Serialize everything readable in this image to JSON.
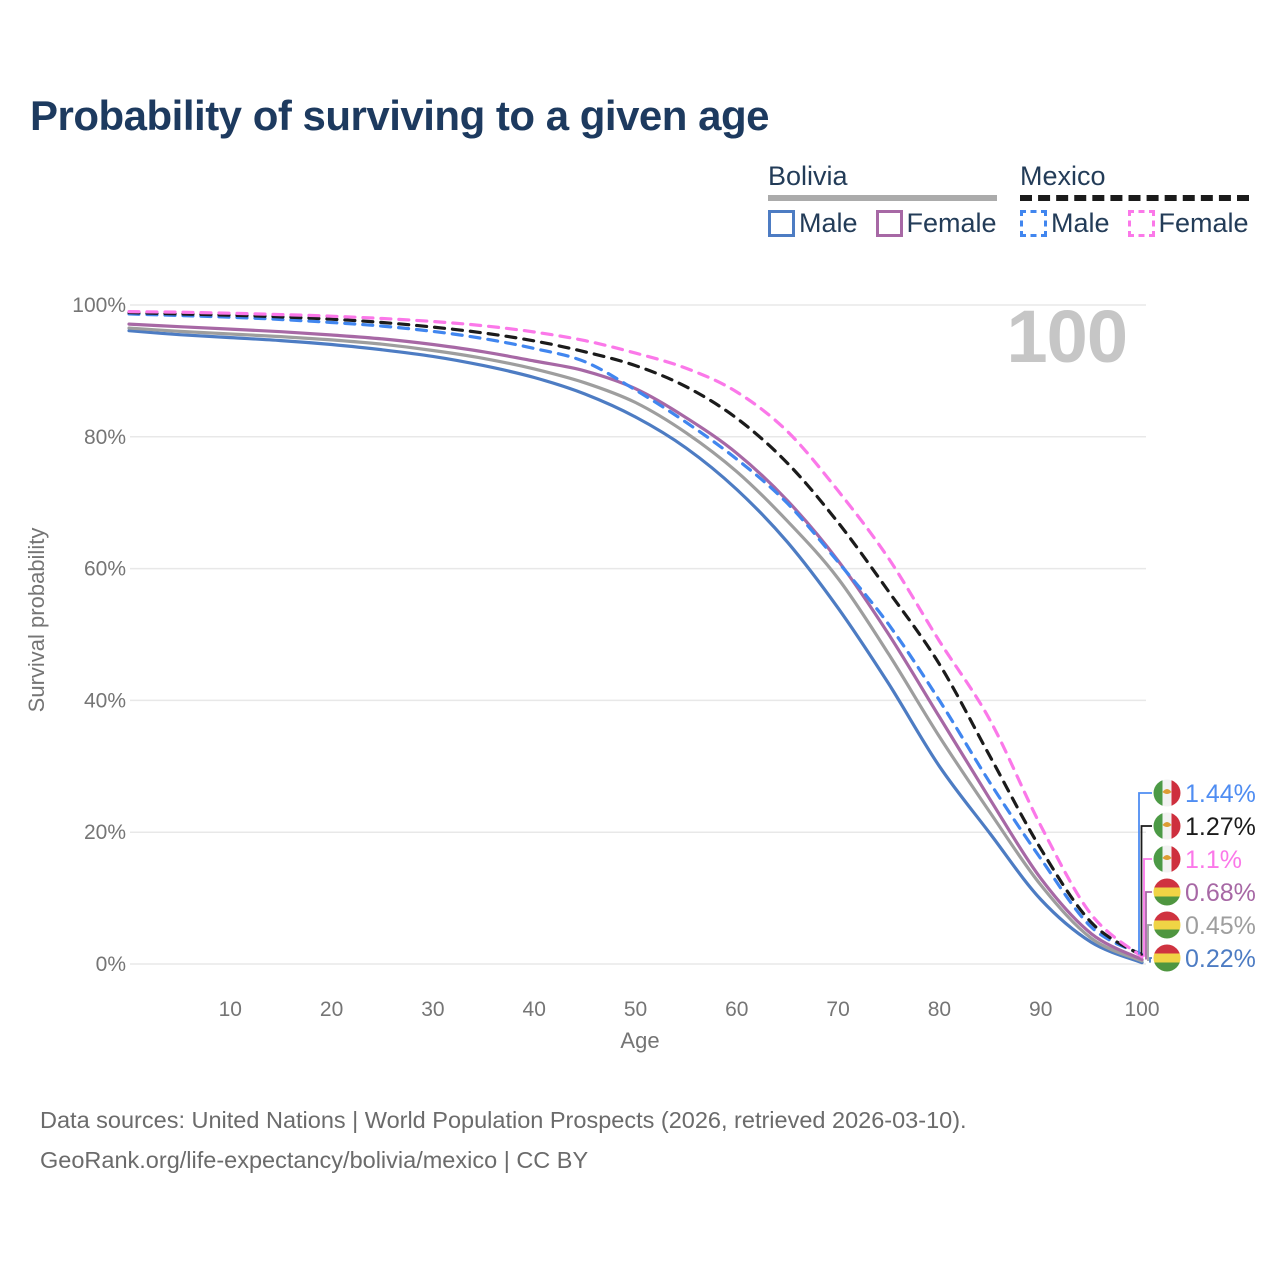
{
  "title": "Probability of surviving to a given age",
  "watermark": "100",
  "legend": {
    "groups": [
      {
        "label": "Bolivia",
        "line_style": "solid",
        "underline_color": "#ababab",
        "items": [
          {
            "label": "Male",
            "color": "#4d7cc3",
            "dashed": false
          },
          {
            "label": "Female",
            "color": "#a768a5",
            "dashed": false
          }
        ]
      },
      {
        "label": "Mexico",
        "line_style": "dashed",
        "underline_color": "#1b1b1b",
        "items": [
          {
            "label": "Male",
            "color": "#4186ef",
            "dashed": true
          },
          {
            "label": "Female",
            "color": "#fb78e9",
            "dashed": true
          }
        ]
      }
    ]
  },
  "chart_data": {
    "type": "line",
    "title": "Probability of surviving to a given age",
    "xlabel": "Age",
    "ylabel": "Survival probability",
    "xlim": [
      0,
      100
    ],
    "ylim": [
      0,
      100
    ],
    "xticks": [
      10,
      20,
      30,
      40,
      50,
      60,
      70,
      80,
      90,
      100
    ],
    "yticks": [
      {
        "value": 0,
        "label": "0%"
      },
      {
        "value": 20,
        "label": "20%"
      },
      {
        "value": 40,
        "label": "40%"
      },
      {
        "value": 60,
        "label": "60%"
      },
      {
        "value": 80,
        "label": "80%"
      },
      {
        "value": 100,
        "label": "100%"
      }
    ],
    "grid": true,
    "legend_position": "top-right",
    "x": [
      0,
      5,
      10,
      15,
      20,
      25,
      30,
      35,
      40,
      45,
      50,
      55,
      60,
      65,
      70,
      75,
      80,
      85,
      90,
      95,
      100
    ],
    "series": [
      {
        "id": "bolivia-male",
        "country": "Bolivia",
        "sex": "Male",
        "color": "#4d7cc3",
        "dashed": false,
        "values": [
          96.1,
          95.5,
          95.05,
          94.6,
          94.0,
          93.2,
          92.2,
          90.8,
          89.0,
          86.5,
          83.0,
          78.3,
          72.0,
          64.0,
          54.0,
          42.5,
          30.0,
          19.8,
          9.8,
          3.3,
          0.22
        ]
      },
      {
        "id": "bolivia-all",
        "country": "Bolivia",
        "sex": "Both",
        "color": "#9e9e9e",
        "dashed": false,
        "values": [
          96.5,
          96.0,
          95.6,
          95.2,
          94.7,
          94.05,
          93.1,
          91.9,
          90.3,
          88.2,
          85.2,
          80.6,
          74.7,
          67.2,
          58.5,
          47.0,
          34.5,
          23.0,
          12.0,
          3.9,
          0.45
        ]
      },
      {
        "id": "bolivia-female",
        "country": "Bolivia",
        "sex": "Female",
        "color": "#a768a5",
        "dashed": false,
        "values": [
          97.1,
          96.7,
          96.35,
          95.95,
          95.45,
          94.85,
          94.0,
          92.9,
          91.5,
          90.0,
          87.3,
          82.9,
          77.5,
          70.3,
          61.2,
          50.0,
          37.5,
          25.0,
          13.0,
          4.6,
          0.68
        ]
      },
      {
        "id": "mexico-male",
        "country": "Mexico",
        "sex": "Male",
        "color": "#4186ef",
        "dashed": true,
        "values": [
          98.65,
          98.4,
          98.15,
          97.8,
          97.35,
          96.8,
          96.0,
          94.9,
          93.4,
          91.4,
          87.1,
          82.2,
          76.6,
          69.9,
          61.0,
          51.5,
          40.0,
          27.5,
          16.0,
          5.6,
          1.44
        ]
      },
      {
        "id": "mexico-all",
        "country": "Mexico",
        "sex": "Both",
        "color": "#1b1b1b",
        "dashed": true,
        "values": [
          98.85,
          98.65,
          98.45,
          98.2,
          97.85,
          97.35,
          96.65,
          95.75,
          94.55,
          92.9,
          90.8,
          87.6,
          82.8,
          76.0,
          67.0,
          56.5,
          45.5,
          31.5,
          17.5,
          6.3,
          1.27
        ]
      },
      {
        "id": "mexico-female",
        "country": "Mexico",
        "sex": "Female",
        "color": "#fb78e9",
        "dashed": true,
        "values": [
          99.0,
          98.9,
          98.75,
          98.55,
          98.3,
          97.95,
          97.5,
          96.85,
          95.9,
          94.6,
          92.7,
          90.4,
          86.8,
          80.8,
          71.8,
          61.5,
          49.0,
          37.0,
          21.0,
          7.5,
          1.1
        ]
      }
    ],
    "end_labels": [
      {
        "text": "1.44%",
        "color": "#4f8df2",
        "flag": "mexico",
        "series": "mexico-male"
      },
      {
        "text": "1.27%",
        "color": "#1b1b1b",
        "flag": "mexico",
        "series": "mexico-all"
      },
      {
        "text": "1.1%",
        "color": "#fb78e9",
        "flag": "mexico",
        "series": "mexico-female"
      },
      {
        "text": "0.68%",
        "color": "#a768a5",
        "flag": "bolivia",
        "series": "bolivia-female"
      },
      {
        "text": "0.45%",
        "color": "#9e9e9e",
        "flag": "bolivia",
        "series": "bolivia-all"
      },
      {
        "text": "0.22%",
        "color": "#4d7cc3",
        "flag": "bolivia",
        "series": "bolivia-male"
      }
    ]
  },
  "flags": {
    "bolivia": {
      "stripes": [
        "#cf3340",
        "#f0d445",
        "#4f9640"
      ]
    },
    "mexico": {
      "green": "#4c9a46",
      "white": "#f2f2f2",
      "red": "#ce2f3e",
      "emblem": "#dd9c33"
    }
  },
  "colors": {
    "title": "#1d3a5f",
    "axis_text": "#757575",
    "gridline": "#e8e8e8",
    "watermark": "#c6c6c6",
    "footer_text": "#6b6b6b"
  },
  "footer": {
    "line1": "Data sources: United Nations | World Population Prospects (2026, retrieved 2026-03-10).",
    "line2": "GeoRank.org/life-expectancy/bolivia/mexico | CC BY"
  }
}
